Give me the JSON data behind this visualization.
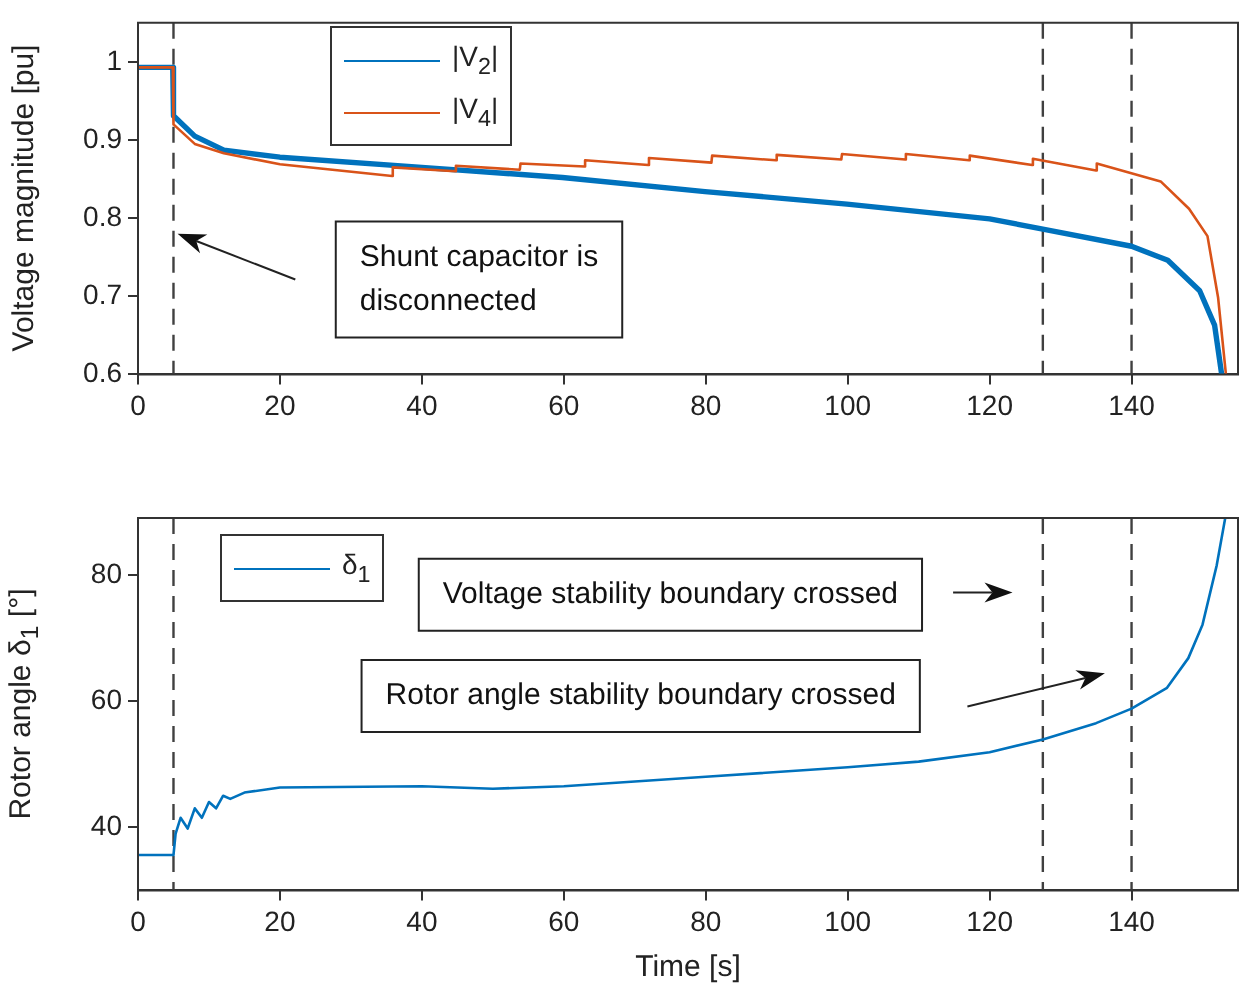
{
  "chart_data": [
    {
      "type": "line",
      "ylabel": "Voltage magnitude [pu]",
      "xlim": [
        0,
        155
      ],
      "xticks": [
        0,
        20,
        40,
        60,
        80,
        100,
        120,
        140
      ],
      "ylim": [
        0.6,
        1.05
      ],
      "yticks": [
        0.6,
        0.7,
        0.8,
        0.9,
        1
      ],
      "grid": false,
      "legend": "top left",
      "line_style": "solid",
      "marker": "none",
      "series": [
        {
          "name": "|V$_{2}$|",
          "color": "#0072bd",
          "x": [
            0,
            4.9,
            5,
            8,
            12.1,
            20,
            40,
            59.8,
            79.9,
            99.9,
            120,
            127.5,
            140,
            145.1,
            149.6,
            151.7,
            152.7
          ],
          "values": [
            0.993,
            0.993,
            0.931,
            0.905,
            0.887,
            0.878,
            0.865,
            0.852,
            0.834,
            0.818,
            0.799,
            0.786,
            0.764,
            0.746,
            0.707,
            0.663,
            0.6
          ]
        },
        {
          "name": "|V$_{4}$|",
          "color": "#d95319",
          "x": [
            0,
            4.9,
            5,
            8,
            12.1,
            20,
            35.8,
            35.9,
            44.7,
            44.8,
            53.8,
            53.9,
            62.9,
            63,
            71.9,
            72,
            80.8,
            80.9,
            89.9,
            90,
            99.1,
            99.2,
            108.1,
            108.2,
            117.1,
            117.2,
            126,
            126.1,
            135,
            135.1,
            144.1,
            148.1,
            150.7,
            152.2,
            153.3
          ],
          "values": [
            0.993,
            0.993,
            0.92,
            0.895,
            0.883,
            0.869,
            0.854,
            0.865,
            0.86,
            0.867,
            0.862,
            0.87,
            0.866,
            0.874,
            0.868,
            0.877,
            0.871,
            0.88,
            0.874,
            0.881,
            0.875,
            0.882,
            0.875,
            0.882,
            0.874,
            0.88,
            0.868,
            0.876,
            0.861,
            0.87,
            0.847,
            0.812,
            0.777,
            0.698,
            0.6
          ]
        }
      ],
      "ref_lines": [
        {
          "axis": "x",
          "value": 5,
          "color": "#404040",
          "line_style": "dashed"
        },
        {
          "axis": "x",
          "value": 127.5,
          "color": "#404040",
          "line_style": "dashed"
        },
        {
          "axis": "x",
          "value": 140,
          "color": "#404040",
          "line_style": "dashed"
        }
      ],
      "annotations": [
        "Shunt capacitor is disconnected"
      ]
    },
    {
      "type": "line",
      "xlabel": "Time [s]",
      "ylabel": "Rotor angle δ$_{1}$  [°]",
      "xlim": [
        0,
        155
      ],
      "xticks": [
        0,
        20,
        40,
        60,
        80,
        100,
        120,
        140
      ],
      "ylim": [
        30,
        89
      ],
      "yticks": [
        40,
        60,
        80
      ],
      "grid": false,
      "legend": "top left",
      "line_style": "solid",
      "marker": "none",
      "series": [
        {
          "name": "δ$_{1}$",
          "color": "#0072bd",
          "x": [
            0,
            5,
            5.3,
            6,
            7,
            8,
            9,
            10,
            11,
            12,
            13,
            15,
            20,
            40,
            50,
            60,
            80,
            100,
            110,
            120,
            127.5,
            135,
            140,
            145,
            148,
            150,
            152,
            153.2
          ],
          "values": [
            35.6,
            35.6,
            39,
            41.5,
            39.8,
            43,
            41.5,
            44,
            43,
            45,
            44.5,
            45.5,
            46.3,
            46.5,
            46.1,
            46.5,
            48,
            49.5,
            50.4,
            51.9,
            53.9,
            56.5,
            58.8,
            62.1,
            66.8,
            72.1,
            81.5,
            89
          ]
        }
      ],
      "ref_lines": [
        {
          "axis": "x",
          "value": 5,
          "color": "#404040",
          "line_style": "dashed"
        },
        {
          "axis": "x",
          "value": 127.5,
          "color": "#404040",
          "line_style": "dashed"
        },
        {
          "axis": "x",
          "value": 140,
          "color": "#404040",
          "line_style": "dashed"
        }
      ],
      "annotations": [
        "Voltage stability boundary crossed",
        "Rotor angle stability boundary crossed"
      ]
    }
  ]
}
